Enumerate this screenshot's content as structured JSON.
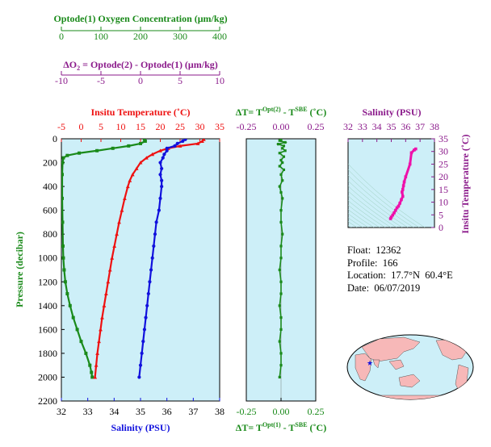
{
  "colors": {
    "oxygen": "#1a8a1a",
    "delta": "#8b1a8b",
    "temperature": "#ee1111",
    "salinity": "#1111dd",
    "ts": "#ee11aa",
    "panel_bg": "#cdeff8",
    "land": "#f7b8b8",
    "ocean_map": "#cdeff8"
  },
  "info": {
    "float": "Float:  12362",
    "profile": "Profile:  166",
    "location": "Location:  17.7°N  60.4°E",
    "date": "Date:  06/07/2019"
  },
  "chart_data": [
    {
      "type": "line",
      "title": "",
      "ylabel": "Pressure (decibar)",
      "ylim": [
        2200,
        0
      ],
      "yticks": [
        "0",
        "200",
        "400",
        "600",
        "800",
        "1000",
        "1200",
        "1400",
        "1600",
        "1800",
        "2000",
        "2200"
      ],
      "axes": {
        "oxygen": {
          "label": "Optode(1) Oxygen Concentration  (μm/kg)",
          "range": [
            0,
            400
          ],
          "ticks": [
            "0",
            "100",
            "200",
            "300",
            "400"
          ]
        },
        "delta_o2": {
          "label_prefix": "ΔO",
          "label_sub": "2",
          "label_suffix": " = Optode(2) - Optode(1)     (μm/kg)",
          "range": [
            -10,
            10
          ],
          "ticks": [
            "-10",
            "-5",
            "0",
            "5",
            "10"
          ]
        },
        "temperature": {
          "label": "Insitu Temperature  (˚C)",
          "range": [
            -5,
            35
          ],
          "ticks": [
            "-5",
            "0",
            "5",
            "10",
            "15",
            "20",
            "25",
            "30",
            "35"
          ]
        },
        "salinity": {
          "label": "Salinity  (PSU)",
          "range": [
            32,
            38
          ],
          "ticks": [
            "32",
            "33",
            "34",
            "35",
            "36",
            "37",
            "38"
          ]
        }
      },
      "series": [
        {
          "name": "Oxygen",
          "color_key": "oxygen",
          "pressure": [
            5,
            20,
            40,
            60,
            80,
            100,
            120,
            140,
            160,
            200,
            300,
            500,
            700,
            900,
            1000,
            1100,
            1200,
            1300,
            1400,
            1500,
            1600,
            1700,
            1800,
            1900,
            1960,
            2000
          ],
          "values": [
            210,
            212,
            200,
            170,
            130,
            90,
            45,
            15,
            5,
            3,
            2,
            2,
            3,
            4,
            5,
            7,
            10,
            15,
            22,
            30,
            40,
            50,
            62,
            72,
            76,
            78
          ]
        },
        {
          "name": "Temperature",
          "color_key": "temperature",
          "pressure": [
            5,
            20,
            40,
            60,
            80,
            100,
            130,
            160,
            200,
            250,
            300,
            350,
            400,
            500,
            600,
            700,
            800,
            900,
            1000,
            1100,
            1200,
            1300,
            1400,
            1500,
            1600,
            1700,
            1800,
            1900,
            2000
          ],
          "values": [
            31.0,
            30.6,
            29.5,
            25.0,
            22.0,
            20.0,
            18.0,
            16.5,
            15.0,
            14.0,
            13.0,
            12.3,
            11.8,
            11.0,
            10.3,
            9.6,
            9.0,
            8.4,
            7.8,
            7.3,
            6.8,
            6.3,
            5.8,
            5.3,
            4.9,
            4.5,
            4.1,
            3.8,
            3.5
          ]
        },
        {
          "name": "Salinity",
          "color_key": "salinity",
          "pressure": [
            5,
            20,
            40,
            60,
            80,
            100,
            130,
            160,
            200,
            250,
            300,
            350,
            400,
            500,
            600,
            700,
            800,
            900,
            1000,
            1100,
            1200,
            1300,
            1400,
            1500,
            1600,
            1700,
            1800,
            1900,
            2000
          ],
          "values": [
            36.7,
            36.6,
            36.4,
            36.3,
            36.0,
            36.0,
            35.9,
            35.85,
            35.75,
            35.8,
            35.75,
            35.8,
            35.8,
            35.75,
            35.7,
            35.6,
            35.55,
            35.5,
            35.45,
            35.4,
            35.35,
            35.3,
            35.25,
            35.2,
            35.15,
            35.1,
            35.05,
            35.0,
            34.95
          ]
        }
      ]
    },
    {
      "type": "scatter",
      "title": "",
      "xlabel_top": {
        "prefix": "ΔT= T",
        "sup1": "Opt(2)",
        "mid": " - T",
        "sup2": "SBE",
        "suffix": " (˚C)"
      },
      "xlabel_bottom": {
        "prefix": "ΔT= T",
        "sup1": "Opt(1)",
        "mid": " - T",
        "sup2": "SBE",
        "suffix": " (˚C)"
      },
      "xlim": [
        -0.25,
        0.25
      ],
      "xticks": [
        "-0.25",
        "0.00",
        "0.25"
      ],
      "ylim": [
        2200,
        0
      ],
      "series": [
        {
          "name": "ΔT",
          "color_key": "oxygen",
          "pressure": [
            5,
            15,
            30,
            45,
            60,
            80,
            100,
            120,
            150,
            180,
            200,
            230,
            260,
            300,
            350,
            400,
            450,
            500,
            600,
            700,
            800,
            900,
            1000,
            1100,
            1200,
            1300,
            1400,
            1500,
            1600,
            1700,
            1800,
            1900,
            2000
          ],
          "values": [
            0.0,
            -0.01,
            0.03,
            -0.02,
            0.02,
            0.01,
            0.03,
            -0.01,
            0.02,
            0.0,
            0.01,
            -0.01,
            0.02,
            0.0,
            0.01,
            -0.01,
            0.0,
            0.01,
            0.0,
            0.0,
            0.01,
            0.0,
            0.0,
            -0.01,
            0.0,
            0.0,
            -0.01,
            0.0,
            0.0,
            -0.01,
            0.0,
            0.0,
            -0.01
          ]
        }
      ]
    },
    {
      "type": "scatter",
      "title": "",
      "xlabel": "Salinity  (PSU)",
      "ylabel": "Insitu Temperature  (˚C)",
      "xlim": [
        32,
        38
      ],
      "ylim": [
        0,
        35
      ],
      "xticks": [
        "32",
        "33",
        "34",
        "35",
        "36",
        "37",
        "38"
      ],
      "yticks": [
        "0",
        "5",
        "10",
        "15",
        "20",
        "25",
        "30",
        "35"
      ],
      "grid": true,
      "series": [
        {
          "name": "T-S",
          "color_key": "ts",
          "salinity": [
            34.95,
            35.0,
            35.1,
            35.2,
            35.3,
            35.4,
            35.5,
            35.6,
            35.7,
            35.8,
            35.75,
            35.8,
            35.85,
            35.9,
            36.0,
            36.3,
            36.4,
            36.6,
            36.7
          ],
          "temperature": [
            3.5,
            4.1,
            4.9,
            5.8,
            6.8,
            7.8,
            8.4,
            9.6,
            11.0,
            12.3,
            14.0,
            15.0,
            16.5,
            18.0,
            20.0,
            25.0,
            29.5,
            30.6,
            31.0
          ]
        }
      ]
    }
  ]
}
